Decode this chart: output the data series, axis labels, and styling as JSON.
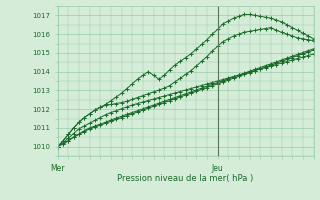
{
  "title": "",
  "xlabel": "Pression niveau de la mer( hPa )",
  "ylabel": "",
  "background_color": "#d4ecd8",
  "grid_color": "#99ccaa",
  "line_color": "#1a6b2a",
  "vline_color": "#557755",
  "ylim": [
    1009.5,
    1017.5
  ],
  "xlim": [
    0,
    48
  ],
  "yticks": [
    1010,
    1011,
    1012,
    1013,
    1014,
    1015,
    1016,
    1017
  ],
  "xtick_positions": [
    0,
    30
  ],
  "xtick_labels": [
    "Mer",
    "Jeu"
  ],
  "vline_x": 30,
  "series": [
    [
      1010.0,
      1010.15,
      1010.3,
      1010.5,
      1010.65,
      1010.8,
      1010.95,
      1011.05,
      1011.15,
      1011.25,
      1011.35,
      1011.45,
      1011.55,
      1011.65,
      1011.75,
      1011.85,
      1011.95,
      1012.05,
      1012.15,
      1012.25,
      1012.35,
      1012.45,
      1012.55,
      1012.65,
      1012.75,
      1012.85,
      1012.95,
      1013.05,
      1013.15,
      1013.25,
      1013.35,
      1013.45,
      1013.55,
      1013.65,
      1013.75,
      1013.85,
      1013.95,
      1014.05,
      1014.15,
      1014.25,
      1014.35,
      1014.45,
      1014.55,
      1014.65,
      1014.75,
      1014.85,
      1014.95,
      1015.05,
      1015.15
    ],
    [
      1010.0,
      1010.15,
      1010.32,
      1010.52,
      1010.68,
      1010.85,
      1011.0,
      1011.1,
      1011.2,
      1011.3,
      1011.42,
      1011.52,
      1011.62,
      1011.72,
      1011.82,
      1011.92,
      1012.02,
      1012.12,
      1012.22,
      1012.32,
      1012.42,
      1012.52,
      1012.62,
      1012.72,
      1012.82,
      1012.92,
      1013.02,
      1013.12,
      1013.22,
      1013.32,
      1013.42,
      1013.52,
      1013.62,
      1013.72,
      1013.82,
      1013.92,
      1014.02,
      1014.12,
      1014.22,
      1014.32,
      1014.42,
      1014.52,
      1014.62,
      1014.72,
      1014.82,
      1014.92,
      1015.02,
      1015.12,
      1015.22
    ],
    [
      1010.0,
      1010.2,
      1010.45,
      1010.7,
      1010.95,
      1011.1,
      1011.25,
      1011.4,
      1011.55,
      1011.7,
      1011.82,
      1011.92,
      1012.02,
      1012.12,
      1012.22,
      1012.3,
      1012.38,
      1012.46,
      1012.54,
      1012.62,
      1012.7,
      1012.78,
      1012.86,
      1012.94,
      1013.02,
      1013.1,
      1013.18,
      1013.26,
      1013.34,
      1013.42,
      1013.5,
      1013.58,
      1013.66,
      1013.74,
      1013.82,
      1013.9,
      1013.98,
      1014.06,
      1014.14,
      1014.22,
      1014.3,
      1014.38,
      1014.46,
      1014.54,
      1014.62,
      1014.7,
      1014.78,
      1014.86,
      1014.94
    ],
    [
      1010.0,
      1010.3,
      1010.65,
      1011.0,
      1011.3,
      1011.55,
      1011.75,
      1011.95,
      1012.1,
      1012.2,
      1012.25,
      1012.3,
      1012.35,
      1012.42,
      1012.52,
      1012.62,
      1012.72,
      1012.82,
      1012.92,
      1013.02,
      1013.12,
      1013.25,
      1013.45,
      1013.65,
      1013.85,
      1014.05,
      1014.3,
      1014.55,
      1014.8,
      1015.1,
      1015.35,
      1015.6,
      1015.75,
      1015.9,
      1016.0,
      1016.1,
      1016.15,
      1016.2,
      1016.25,
      1016.3,
      1016.35,
      1016.2,
      1016.1,
      1016.0,
      1015.9,
      1015.8,
      1015.75,
      1015.7,
      1015.65
    ],
    [
      1010.0,
      1010.3,
      1010.65,
      1011.0,
      1011.3,
      1011.55,
      1011.75,
      1011.95,
      1012.1,
      1012.25,
      1012.45,
      1012.65,
      1012.85,
      1013.1,
      1013.35,
      1013.6,
      1013.8,
      1014.0,
      1013.8,
      1013.6,
      1013.8,
      1014.1,
      1014.35,
      1014.55,
      1014.75,
      1014.95,
      1015.2,
      1015.45,
      1015.7,
      1016.0,
      1016.25,
      1016.55,
      1016.7,
      1016.85,
      1016.95,
      1017.05,
      1017.05,
      1017.0,
      1016.95,
      1016.9,
      1016.85,
      1016.75,
      1016.65,
      1016.5,
      1016.35,
      1016.2,
      1016.05,
      1015.9,
      1015.75
    ]
  ]
}
